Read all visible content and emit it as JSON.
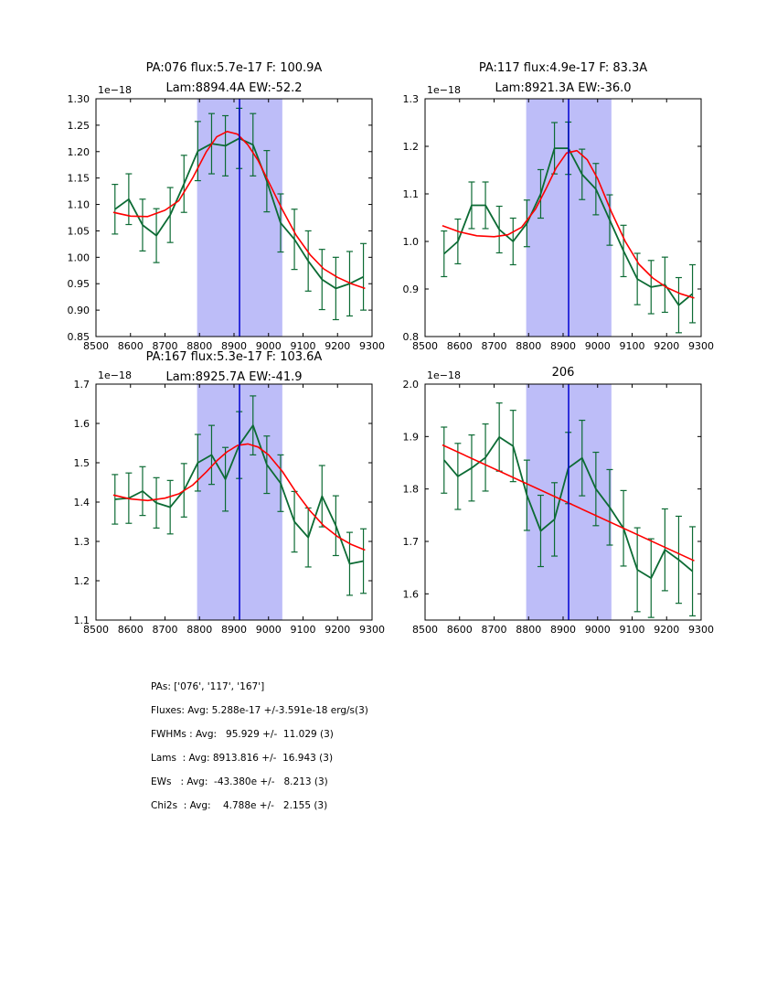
{
  "colors": {
    "axis": "#000000",
    "data_line": "#0c6b34",
    "fit_line": "#ff0000",
    "center_line": "#0000d0",
    "band_fill": "#bdbdf8"
  },
  "summary": {
    "lines": [
      "PAs: ['076', '117', '167']",
      "Fluxes: Avg: 5.288e-17 +/-3.591e-18 erg/s(3)",
      "FWHMs : Avg:   95.929 +/-  11.029 (3)",
      "Lams  : Avg: 8913.816 +/-  16.943 (3)",
      "EWs   : Avg:  -43.380e +/-   8.213 (3)",
      "Chi2s  : Avg:    4.788e +/-   2.155 (3)"
    ]
  },
  "chart_data": [
    {
      "type": "line",
      "name": "pa076",
      "title_line1": "PA:076 flux:5.7e-17 F: 100.9A",
      "title_line2": "Lam:8894.4A EW:-52.2",
      "offset_label": "1e−18",
      "xlim": [
        8500,
        9300
      ],
      "ylim": [
        0.85,
        1.3
      ],
      "xticks": [
        8500,
        8600,
        8700,
        8800,
        8900,
        9000,
        9100,
        9200,
        9300
      ],
      "xtick_labels": [
        "8500",
        "8600",
        "8700",
        "8800",
        "8900",
        "9000",
        "9100",
        "9200",
        "9300"
      ],
      "yticks": [
        0.85,
        0.9,
        0.95,
        1.0,
        1.05,
        1.1,
        1.15,
        1.2,
        1.25,
        1.3
      ],
      "ytick_labels": [
        "0.85",
        "0.90",
        "0.95",
        "1.00",
        "1.05",
        "1.10",
        "1.15",
        "1.20",
        "1.25",
        "1.30"
      ],
      "band": {
        "x0": 8793,
        "x1": 9040
      },
      "center_x": 8916,
      "x": [
        8555,
        8595,
        8635,
        8675,
        8715,
        8755,
        8795,
        8835,
        8875,
        8915,
        8955,
        8995,
        9035,
        9075,
        9115,
        9155,
        9195,
        9235,
        9275
      ],
      "y": [
        1.091,
        1.11,
        1.061,
        1.041,
        1.08,
        1.139,
        1.201,
        1.215,
        1.211,
        1.225,
        1.213,
        1.144,
        1.065,
        1.034,
        0.993,
        0.958,
        0.941,
        0.95,
        0.963
      ],
      "yerr": [
        0.047,
        0.048,
        0.049,
        0.051,
        0.052,
        0.054,
        0.056,
        0.057,
        0.057,
        0.057,
        0.059,
        0.058,
        0.055,
        0.057,
        0.057,
        0.057,
        0.059,
        0.061,
        0.063
      ],
      "fit_x": [
        8550,
        8600,
        8650,
        8700,
        8740,
        8780,
        8820,
        8850,
        8880,
        8910,
        8940,
        8970,
        9000,
        9040,
        9080,
        9120,
        9160,
        9200,
        9240,
        9280
      ],
      "fit_y": [
        1.085,
        1.078,
        1.077,
        1.089,
        1.107,
        1.15,
        1.2,
        1.228,
        1.238,
        1.233,
        1.213,
        1.183,
        1.143,
        1.09,
        1.042,
        1.005,
        0.978,
        0.962,
        0.95,
        0.941
      ]
    },
    {
      "type": "line",
      "name": "pa117",
      "title_line1": "PA:117 flux:4.9e-17 F: 83.3A",
      "title_line2": "Lam:8921.3A EW:-36.0",
      "offset_label": "1e−18",
      "xlim": [
        8500,
        9300
      ],
      "ylim": [
        0.8,
        1.3
      ],
      "xticks": [
        8500,
        8600,
        8700,
        8800,
        8900,
        9000,
        9100,
        9200,
        9300
      ],
      "xtick_labels": [
        "8500",
        "8600",
        "8700",
        "8800",
        "8900",
        "9000",
        "9100",
        "9200",
        "9300"
      ],
      "yticks": [
        0.8,
        0.9,
        1.0,
        1.1,
        1.2,
        1.3
      ],
      "ytick_labels": [
        "0.8",
        "0.9",
        "1.0",
        "1.1",
        "1.2",
        "1.3"
      ],
      "band": {
        "x0": 8793,
        "x1": 9040
      },
      "center_x": 8916,
      "x": [
        8555,
        8595,
        8635,
        8675,
        8715,
        8755,
        8795,
        8835,
        8875,
        8915,
        8955,
        8995,
        9035,
        9075,
        9115,
        9155,
        9195,
        9235,
        9275
      ],
      "y": [
        0.974,
        1.0,
        1.076,
        1.076,
        1.025,
        1.0,
        1.038,
        1.1,
        1.196,
        1.196,
        1.141,
        1.11,
        1.045,
        0.98,
        0.921,
        0.904,
        0.909,
        0.866,
        0.89
      ],
      "yerr": [
        0.048,
        0.047,
        0.049,
        0.049,
        0.049,
        0.049,
        0.049,
        0.051,
        0.054,
        0.055,
        0.053,
        0.054,
        0.053,
        0.054,
        0.054,
        0.056,
        0.058,
        0.058,
        0.061
      ],
      "fit_x": [
        8550,
        8600,
        8650,
        8700,
        8740,
        8780,
        8820,
        8850,
        8880,
        8910,
        8940,
        8970,
        9000,
        9040,
        9080,
        9120,
        9160,
        9200,
        9240,
        9280
      ],
      "fit_y": [
        1.033,
        1.02,
        1.012,
        1.01,
        1.014,
        1.03,
        1.068,
        1.11,
        1.155,
        1.186,
        1.191,
        1.172,
        1.132,
        1.062,
        1.0,
        0.952,
        0.923,
        0.903,
        0.89,
        0.881
      ]
    },
    {
      "type": "line",
      "name": "pa167",
      "title_line1": "PA:167 flux:5.3e-17 F: 103.6A",
      "title_line2": "Lam:8925.7A EW:-41.9",
      "offset_label": "1e−18",
      "xlim": [
        8500,
        9300
      ],
      "ylim": [
        1.1,
        1.7
      ],
      "xticks": [
        8500,
        8600,
        8700,
        8800,
        8900,
        9000,
        9100,
        9200,
        9300
      ],
      "xtick_labels": [
        "8500",
        "8600",
        "8700",
        "8800",
        "8900",
        "9000",
        "9100",
        "9200",
        "9300"
      ],
      "yticks": [
        1.1,
        1.2,
        1.3,
        1.4,
        1.5,
        1.6,
        1.7
      ],
      "ytick_labels": [
        "1.1",
        "1.2",
        "1.3",
        "1.4",
        "1.5",
        "1.6",
        "1.7"
      ],
      "band": {
        "x0": 8793,
        "x1": 9040
      },
      "center_x": 8916,
      "x": [
        8555,
        8595,
        8635,
        8675,
        8715,
        8755,
        8795,
        8835,
        8875,
        8915,
        8955,
        8995,
        9035,
        9075,
        9115,
        9155,
        9195,
        9235,
        9275
      ],
      "y": [
        1.407,
        1.41,
        1.428,
        1.398,
        1.387,
        1.43,
        1.5,
        1.52,
        1.458,
        1.545,
        1.595,
        1.495,
        1.448,
        1.35,
        1.31,
        1.415,
        1.34,
        1.243,
        1.25
      ],
      "yerr": [
        0.063,
        0.064,
        0.062,
        0.064,
        0.068,
        0.068,
        0.072,
        0.075,
        0.081,
        0.085,
        0.075,
        0.073,
        0.072,
        0.077,
        0.075,
        0.078,
        0.076,
        0.08,
        0.082
      ],
      "fit_x": [
        8550,
        8600,
        8650,
        8700,
        8740,
        8780,
        8820,
        8850,
        8880,
        8910,
        8940,
        8970,
        9000,
        9040,
        9080,
        9120,
        9160,
        9200,
        9240,
        9280
      ],
      "fit_y": [
        1.418,
        1.408,
        1.404,
        1.41,
        1.421,
        1.443,
        1.477,
        1.505,
        1.528,
        1.544,
        1.548,
        1.54,
        1.52,
        1.478,
        1.425,
        1.378,
        1.34,
        1.312,
        1.292,
        1.278
      ]
    },
    {
      "type": "line",
      "name": "206",
      "title_line1": "206",
      "title_line2": "",
      "offset_label": "1e−18",
      "xlim": [
        8500,
        9300
      ],
      "ylim": [
        1.55,
        2.0
      ],
      "xticks": [
        8500,
        8600,
        8700,
        8800,
        8900,
        9000,
        9100,
        9200,
        9300
      ],
      "xtick_labels": [
        "8500",
        "8600",
        "8700",
        "8800",
        "8900",
        "9000",
        "9100",
        "9200",
        "9300"
      ],
      "yticks": [
        1.6,
        1.7,
        1.8,
        1.9,
        2.0
      ],
      "ytick_labels": [
        "1.6",
        "1.7",
        "1.8",
        "1.9",
        "2.0"
      ],
      "band": {
        "x0": 8793,
        "x1": 9040
      },
      "center_x": 8916,
      "x": [
        8555,
        8595,
        8635,
        8675,
        8715,
        8755,
        8795,
        8835,
        8875,
        8915,
        8955,
        8995,
        9035,
        9075,
        9115,
        9155,
        9195,
        9235,
        9275
      ],
      "y": [
        1.855,
        1.824,
        1.84,
        1.86,
        1.899,
        1.882,
        1.788,
        1.72,
        1.742,
        1.84,
        1.859,
        1.8,
        1.765,
        1.725,
        1.646,
        1.63,
        1.684,
        1.665,
        1.643
      ],
      "yerr": [
        0.063,
        0.063,
        0.063,
        0.064,
        0.065,
        0.068,
        0.067,
        0.068,
        0.07,
        0.068,
        0.072,
        0.07,
        0.072,
        0.072,
        0.08,
        0.075,
        0.078,
        0.083,
        0.085
      ],
      "fit_x": [
        8550,
        9280
      ],
      "fit_y": [
        1.884,
        1.663
      ]
    }
  ]
}
